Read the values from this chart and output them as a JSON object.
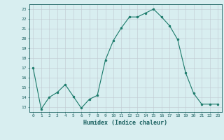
{
  "x": [
    0,
    1,
    2,
    3,
    4,
    5,
    6,
    7,
    8,
    9,
    10,
    11,
    12,
    13,
    14,
    15,
    16,
    17,
    18,
    19,
    20,
    21,
    22,
    23
  ],
  "y": [
    17.0,
    12.8,
    14.0,
    14.5,
    15.3,
    14.1,
    12.9,
    13.8,
    14.2,
    17.8,
    19.8,
    21.1,
    22.2,
    22.2,
    22.6,
    23.0,
    22.2,
    21.3,
    19.9,
    16.5,
    14.4,
    13.3,
    13.3,
    13.3
  ],
  "line_color": "#1a7a6a",
  "marker": "o",
  "marker_size": 2.0,
  "bg_color": "#d8eef0",
  "grid_color": "#c0c8d0",
  "xlabel": "Humidex (Indice chaleur)",
  "ylim": [
    12.5,
    23.5
  ],
  "xlim": [
    -0.5,
    23.5
  ],
  "yticks": [
    13,
    14,
    15,
    16,
    17,
    18,
    19,
    20,
    21,
    22,
    23
  ],
  "xticks": [
    0,
    1,
    2,
    3,
    4,
    5,
    6,
    7,
    8,
    9,
    10,
    11,
    12,
    13,
    14,
    15,
    16,
    17,
    18,
    19,
    20,
    21,
    22,
    23
  ],
  "tick_label_color": "#1a6060",
  "spine_color": "#1a6060",
  "xlabel_color": "#1a6060"
}
